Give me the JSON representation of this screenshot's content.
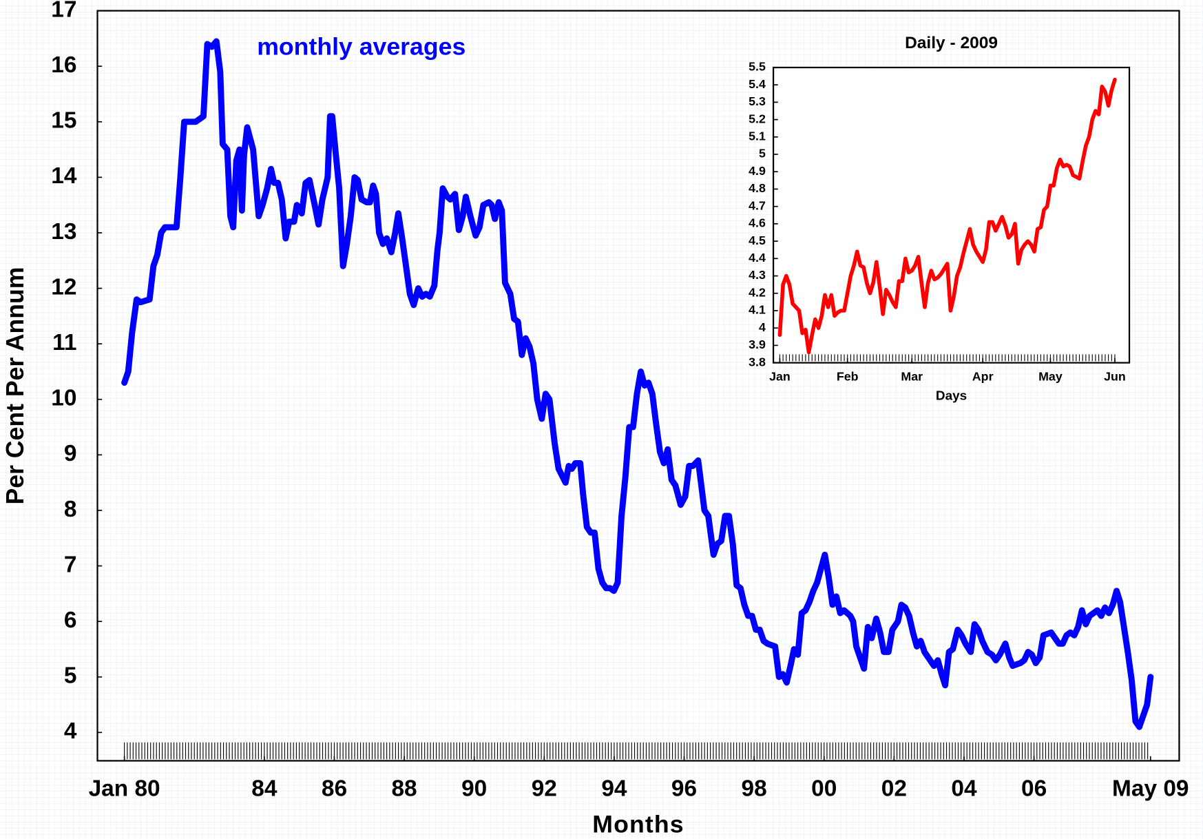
{
  "chart_data": [
    {
      "type": "line",
      "annotation": "monthly averages",
      "x_label": "Months",
      "y_label": "Per Cent Per Annum",
      "color": "#0000ff",
      "xlim": [
        1979.23,
        2010.15
      ],
      "ylim": [
        3.49,
        17
      ],
      "xticks": [
        {
          "value": 1980,
          "label": "Jan 80"
        },
        {
          "value": 1984,
          "label": "84"
        },
        {
          "value": 1986,
          "label": "86"
        },
        {
          "value": 1988,
          "label": "88"
        },
        {
          "value": 1990,
          "label": "90"
        },
        {
          "value": 1992,
          "label": "92"
        },
        {
          "value": 1994,
          "label": "94"
        },
        {
          "value": 1996,
          "label": "96"
        },
        {
          "value": 1998,
          "label": "98"
        },
        {
          "value": 2000,
          "label": "00"
        },
        {
          "value": 2002,
          "label": "02"
        },
        {
          "value": 2004,
          "label": "04"
        },
        {
          "value": 2006,
          "label": "06"
        },
        {
          "value": 2009.33,
          "label": "May 09"
        }
      ],
      "yticks": [
        4,
        5,
        6,
        7,
        8,
        9,
        10,
        11,
        12,
        13,
        14,
        15,
        16,
        17
      ],
      "x": [
        1980.0,
        1980.11,
        1980.22,
        1980.35,
        1980.46,
        1980.72,
        1980.83,
        1980.94,
        1981.05,
        1981.16,
        1981.49,
        1981.6,
        1981.71,
        1982.04,
        1982.26,
        1982.37,
        1982.5,
        1982.63,
        1982.74,
        1982.81,
        1982.94,
        1983.03,
        1983.11,
        1983.2,
        1983.29,
        1983.36,
        1983.42,
        1983.51,
        1983.68,
        1983.84,
        1983.95,
        1984.08,
        1984.19,
        1984.28,
        1984.39,
        1984.5,
        1984.61,
        1984.71,
        1984.85,
        1984.93,
        1985.07,
        1985.18,
        1985.29,
        1985.44,
        1985.55,
        1985.66,
        1985.81,
        1985.88,
        1985.94,
        1986.03,
        1986.14,
        1986.25,
        1986.36,
        1986.47,
        1986.58,
        1986.67,
        1986.78,
        1986.93,
        1987.02,
        1987.11,
        1987.19,
        1987.28,
        1987.39,
        1987.5,
        1987.63,
        1987.74,
        1987.83,
        1987.94,
        1988.05,
        1988.16,
        1988.27,
        1988.4,
        1988.51,
        1988.62,
        1988.73,
        1988.86,
        1988.95,
        1989.01,
        1989.1,
        1989.23,
        1989.32,
        1989.45,
        1989.56,
        1989.67,
        1989.76,
        1989.89,
        1990.04,
        1990.15,
        1990.26,
        1990.42,
        1990.5,
        1990.59,
        1990.7,
        1990.79,
        1990.88,
        1991.03,
        1991.14,
        1991.25,
        1991.36,
        1991.47,
        1991.58,
        1991.69,
        1991.8,
        1991.93,
        1992.04,
        1992.15,
        1992.3,
        1992.41,
        1992.61,
        1992.7,
        1992.79,
        1992.89,
        1993.03,
        1993.11,
        1993.22,
        1993.33,
        1993.44,
        1993.55,
        1993.66,
        1993.77,
        1993.88,
        1993.99,
        1994.1,
        1994.21,
        1994.32,
        1994.43,
        1994.54,
        1994.65,
        1994.76,
        1994.87,
        1994.98,
        1995.09,
        1995.2,
        1995.31,
        1995.42,
        1995.53,
        1995.64,
        1995.75,
        1995.9,
        1996.03,
        1996.14,
        1996.25,
        1996.4,
        1996.58,
        1996.69,
        1996.84,
        1996.95,
        1997.06,
        1997.17,
        1997.28,
        1997.39,
        1997.5,
        1997.61,
        1997.72,
        1997.83,
        1997.94,
        1998.05,
        1998.16,
        1998.27,
        1998.38,
        1998.6,
        1998.71,
        1998.82,
        1998.93,
        1999.04,
        1999.14,
        1999.25,
        1999.36,
        1999.47,
        1999.58,
        1999.69,
        1999.8,
        1999.91,
        2000.02,
        2000.13,
        2000.24,
        2000.35,
        2000.46,
        2000.57,
        2000.75,
        2000.83,
        2000.92,
        2001.03,
        2001.14,
        2001.25,
        2001.36,
        2001.49,
        2001.6,
        2001.71,
        2001.84,
        2001.95,
        2002.11,
        2002.21,
        2002.32,
        2002.43,
        2002.54,
        2002.65,
        2002.76,
        2002.87,
        2003.03,
        2003.14,
        2003.25,
        2003.36,
        2003.46,
        2003.57,
        2003.68,
        2003.82,
        2003.93,
        2004.04,
        2004.19,
        2004.3,
        2004.41,
        2004.52,
        2004.67,
        2004.8,
        2004.91,
        2005.02,
        2005.18,
        2005.29,
        2005.39,
        2005.61,
        2005.72,
        2005.83,
        2005.94,
        2006.05,
        2006.16,
        2006.27,
        2006.49,
        2006.71,
        2006.82,
        2006.93,
        2007.04,
        2007.15,
        2007.26,
        2007.37,
        2007.48,
        2007.59,
        2007.81,
        2007.92,
        2008.03,
        2008.14,
        2008.25,
        2008.36,
        2008.46,
        2008.57,
        2008.68,
        2008.79,
        2008.9,
        2009.01,
        2009.12,
        2009.23,
        2009.33
      ],
      "values": [
        10.3,
        10.5,
        11.2,
        11.8,
        11.75,
        11.8,
        12.4,
        12.6,
        13.0,
        13.1,
        13.1,
        14.0,
        15.0,
        15.0,
        15.1,
        16.4,
        16.35,
        16.45,
        15.9,
        14.6,
        14.5,
        13.3,
        13.1,
        14.3,
        14.5,
        13.4,
        14.4,
        14.9,
        14.5,
        13.3,
        13.5,
        13.8,
        14.15,
        13.9,
        13.9,
        13.6,
        12.9,
        13.2,
        13.2,
        13.5,
        13.35,
        13.9,
        13.95,
        13.5,
        13.15,
        13.6,
        14.0,
        15.1,
        15.1,
        14.5,
        13.8,
        12.4,
        12.8,
        13.3,
        14.0,
        13.95,
        13.6,
        13.55,
        13.55,
        13.85,
        13.7,
        13.0,
        12.8,
        12.9,
        12.65,
        13.0,
        13.35,
        12.9,
        12.4,
        11.9,
        11.7,
        12.0,
        11.85,
        11.9,
        11.85,
        12.05,
        12.7,
        13.0,
        13.8,
        13.65,
        13.6,
        13.7,
        13.05,
        13.3,
        13.65,
        13.3,
        12.95,
        13.1,
        13.5,
        13.55,
        13.5,
        13.25,
        13.55,
        13.4,
        12.1,
        11.9,
        11.45,
        11.4,
        10.8,
        11.1,
        10.95,
        10.65,
        10.0,
        9.65,
        10.1,
        10.0,
        9.2,
        8.75,
        8.5,
        8.8,
        8.75,
        8.85,
        8.85,
        8.3,
        7.7,
        7.6,
        7.6,
        6.95,
        6.7,
        6.6,
        6.6,
        6.55,
        6.7,
        7.9,
        8.6,
        9.5,
        9.5,
        10.1,
        10.5,
        10.25,
        10.3,
        10.1,
        9.55,
        9.05,
        8.85,
        9.1,
        8.55,
        8.45,
        8.1,
        8.25,
        8.8,
        8.8,
        8.9,
        8.0,
        7.9,
        7.2,
        7.4,
        7.45,
        7.9,
        7.9,
        7.4,
        6.65,
        6.6,
        6.3,
        6.1,
        6.1,
        5.85,
        5.85,
        5.65,
        5.6,
        5.55,
        5.0,
        5.05,
        4.9,
        5.2,
        5.5,
        5.4,
        6.15,
        6.2,
        6.35,
        6.55,
        6.7,
        6.95,
        7.2,
        6.8,
        6.3,
        6.45,
        6.15,
        6.2,
        6.1,
        6.0,
        5.55,
        5.35,
        5.15,
        5.9,
        5.7,
        6.05,
        5.8,
        5.45,
        5.45,
        5.85,
        6.0,
        6.3,
        6.25,
        6.1,
        5.8,
        5.55,
        5.65,
        5.45,
        5.3,
        5.2,
        5.3,
        5.05,
        4.85,
        5.45,
        5.5,
        5.85,
        5.75,
        5.6,
        5.45,
        5.95,
        5.85,
        5.65,
        5.45,
        5.4,
        5.3,
        5.4,
        5.6,
        5.35,
        5.2,
        5.25,
        5.3,
        5.45,
        5.4,
        5.25,
        5.35,
        5.75,
        5.8,
        5.6,
        5.6,
        5.75,
        5.8,
        5.75,
        5.9,
        6.2,
        5.95,
        6.1,
        6.2,
        6.1,
        6.25,
        6.15,
        6.3,
        6.55,
        6.35,
        5.9,
        5.45,
        4.95,
        4.2,
        4.1,
        4.3,
        4.5,
        5.0
      ]
    },
    {
      "type": "line",
      "title": "Daily - 2009",
      "x_label": "Days",
      "color": "#ff0000",
      "xlim": [
        -2,
        108.5
      ],
      "ylim": [
        3.8,
        5.5
      ],
      "xticks": [
        {
          "value": 0,
          "label": "Jan"
        },
        {
          "value": 21,
          "label": "Feb"
        },
        {
          "value": 41,
          "label": "Mar"
        },
        {
          "value": 63,
          "label": "Apr"
        },
        {
          "value": 84,
          "label": "May"
        },
        {
          "value": 104,
          "label": "Jun"
        }
      ],
      "yticks": [
        3.8,
        3.9,
        4,
        4.1,
        4.2,
        4.3,
        4.4,
        4.5,
        4.6,
        4.7,
        4.8,
        4.9,
        5,
        5.1,
        5.2,
        5.3,
        5.4,
        5.5
      ],
      "values": [
        3.96,
        4.25,
        4.3,
        4.25,
        4.14,
        4.12,
        4.1,
        3.97,
        3.99,
        3.86,
        3.96,
        4.05,
        4.0,
        4.07,
        4.19,
        4.12,
        4.19,
        4.07,
        4.09,
        4.1,
        4.1,
        4.2,
        4.3,
        4.36,
        4.44,
        4.36,
        4.35,
        4.26,
        4.2,
        4.26,
        4.38,
        4.24,
        4.08,
        4.22,
        4.19,
        4.15,
        4.12,
        4.27,
        4.27,
        4.4,
        4.32,
        4.33,
        4.36,
        4.41,
        4.26,
        4.12,
        4.26,
        4.33,
        4.28,
        4.29,
        4.31,
        4.34,
        4.37,
        4.1,
        4.18,
        4.3,
        4.35,
        4.43,
        4.5,
        4.57,
        4.48,
        4.44,
        4.41,
        4.38,
        4.45,
        4.61,
        4.61,
        4.56,
        4.6,
        4.64,
        4.59,
        4.52,
        4.54,
        4.6,
        4.37,
        4.45,
        4.48,
        4.5,
        4.48,
        4.44,
        4.57,
        4.58,
        4.68,
        4.7,
        4.82,
        4.82,
        4.92,
        4.97,
        4.93,
        4.94,
        4.93,
        4.88,
        4.87,
        4.86,
        4.96,
        5.05,
        5.1,
        5.2,
        5.25,
        5.23,
        5.39,
        5.36,
        5.28,
        5.37,
        5.43
      ]
    }
  ]
}
